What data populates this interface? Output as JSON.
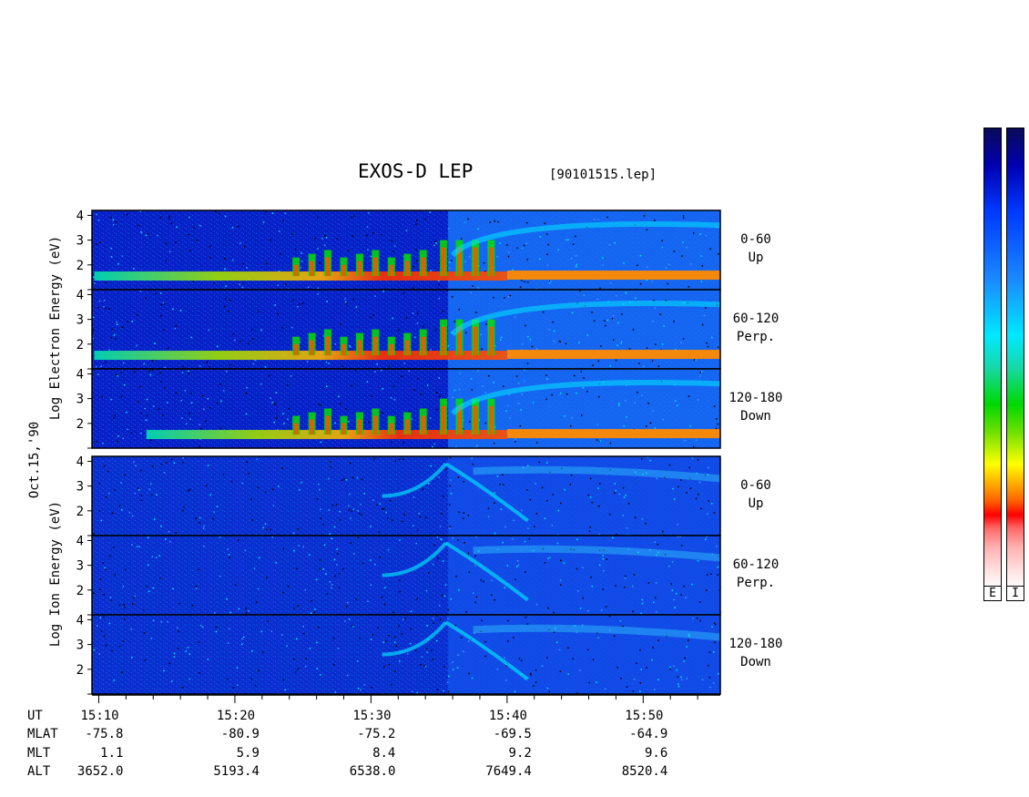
{
  "title": "EXOS-D LEP",
  "file_label": "[90101515.lep]",
  "date_label": "Oct.15,'90",
  "electron_axis_label": "Log  Electron  Energy (eV)",
  "ion_axis_label": "Log  Ion  Energy (eV)",
  "panels": [
    {
      "group": "electron",
      "line1": "0-60",
      "line2": "Up"
    },
    {
      "group": "electron",
      "line1": "60-120",
      "line2": "Perp."
    },
    {
      "group": "electron",
      "line1": "120-180",
      "line2": "Down"
    },
    {
      "group": "ion",
      "line1": "0-60",
      "line2": "Up"
    },
    {
      "group": "ion",
      "line1": "60-120",
      "line2": "Perp."
    },
    {
      "group": "ion",
      "line1": "120-180",
      "line2": "Down"
    }
  ],
  "colorbar_labels": [
    "E",
    "I"
  ],
  "colors": {
    "low": "#0000b0",
    "mid": "#00e8ff",
    "high": "#ff0000"
  },
  "chart_data": {
    "type": "heatmap",
    "title": "EXOS-D LEP",
    "xlabel": "UT",
    "x_range": [
      "15:09:30",
      "15:55:40"
    ],
    "x_ticks": [
      "15:10",
      "15:20",
      "15:30",
      "15:40",
      "15:50"
    ],
    "y_ticks": [
      "2",
      "3",
      "4"
    ],
    "ylim": [
      1.0,
      4.2
    ],
    "ylabel_electron": "Log  Electron  Energy (eV)",
    "ylabel_ion": "Log  Ion  Energy (eV)",
    "ephemeris": [
      {
        "label": "UT",
        "values": [
          "15:10",
          "15:20",
          "15:30",
          "15:40",
          "15:50"
        ]
      },
      {
        "label": "MLAT",
        "values": [
          "-75.8",
          "-80.9",
          "-75.2",
          "-69.5",
          "-64.9"
        ]
      },
      {
        "label": "MLT",
        "values": [
          "1.1",
          "5.9",
          "8.4",
          "9.2",
          "9.6"
        ]
      },
      {
        "label": "ALT",
        "values": [
          "3652.0",
          "5193.4",
          "6538.0",
          "7649.4",
          "8520.4"
        ]
      }
    ]
  }
}
